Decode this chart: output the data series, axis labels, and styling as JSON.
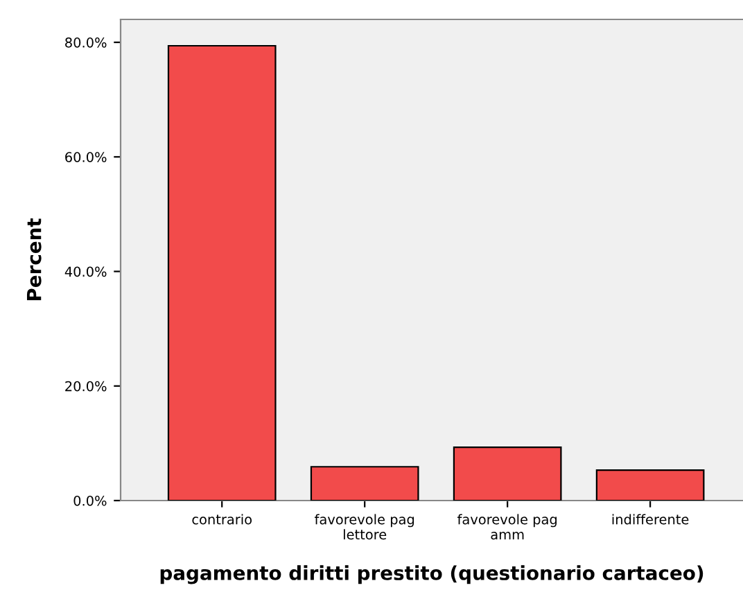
{
  "chart_data": {
    "type": "bar",
    "xlabel": "pagamento diritti prestito (questionario cartaceo)",
    "ylabel": "Percent",
    "categories": [
      "contrario",
      "favorevole pag\nlettore",
      "favorevole pag\namm",
      "indifferente"
    ],
    "values": [
      79.4,
      5.9,
      9.3,
      5.3
    ],
    "color": "#f24b4b",
    "ylim": [
      0,
      84
    ],
    "yticks": [
      {
        "value": 0,
        "label": "0.0%"
      },
      {
        "value": 20,
        "label": "20.0%"
      },
      {
        "value": 40,
        "label": "40.0%"
      },
      {
        "value": 60,
        "label": "60.0%"
      },
      {
        "value": 80,
        "label": "80.0%"
      }
    ],
    "grid": false
  }
}
